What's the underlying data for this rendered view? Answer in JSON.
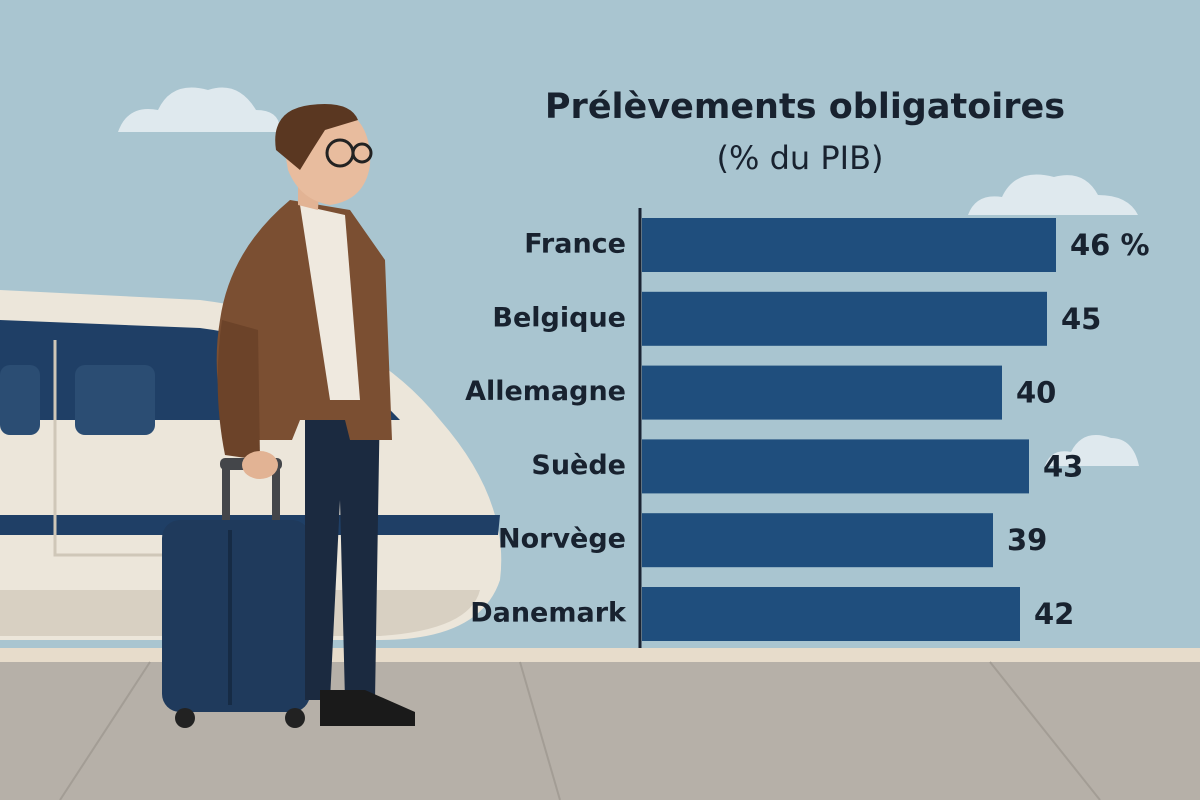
{
  "chart_data": {
    "type": "bar",
    "orientation": "horizontal",
    "title": "Prélèvements obligatoires",
    "subtitle": "(% du PIB)",
    "categories": [
      "France",
      "Belgique",
      "Allemagne",
      "Suède",
      "Norvège",
      "Danemark"
    ],
    "values": [
      46,
      45,
      40,
      43,
      39,
      42
    ],
    "value_labels": [
      "46 %",
      "45",
      "40",
      "43",
      "39",
      "42"
    ],
    "color": "#1f4e7d"
  }
}
